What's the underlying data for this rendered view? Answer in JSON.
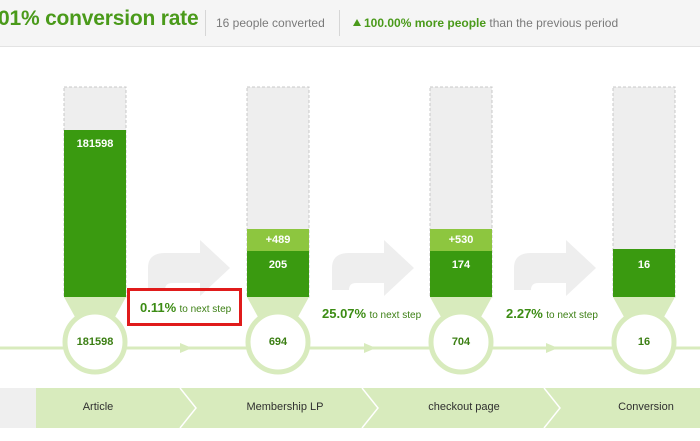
{
  "header": {
    "conversion_rate": "01% conversion rate",
    "people_converted": "16 people converted",
    "change_strong": "100.00% more people",
    "change_rest": " than the previous period"
  },
  "stages": [
    {
      "name": "Article",
      "bar_value": "181598",
      "node_value": "181598",
      "bar_ratio": 0.79
    },
    {
      "name": "Membership LP",
      "bar_value": "205",
      "plus_value": "+489",
      "node_value": "694",
      "bar_ratio": 0.31
    },
    {
      "name": "checkout page",
      "bar_value": "174",
      "plus_value": "+530",
      "node_value": "704",
      "bar_ratio": 0.31
    },
    {
      "name": "Conversion",
      "bar_value": "16",
      "node_value": "16",
      "bar_ratio": 0.23
    }
  ],
  "steps": [
    {
      "percent": "0.11%",
      "text": "to next step"
    },
    {
      "percent": "25.07%",
      "text": "to next step"
    },
    {
      "percent": "2.27%",
      "text": "to next step"
    }
  ],
  "colors": {
    "dark_green": "#3a9a10",
    "light_green": "#8dc63f",
    "pale_green": "#d8ebbd",
    "accent_text": "#4a9a1a",
    "highlight_border": "#e01b1b"
  }
}
